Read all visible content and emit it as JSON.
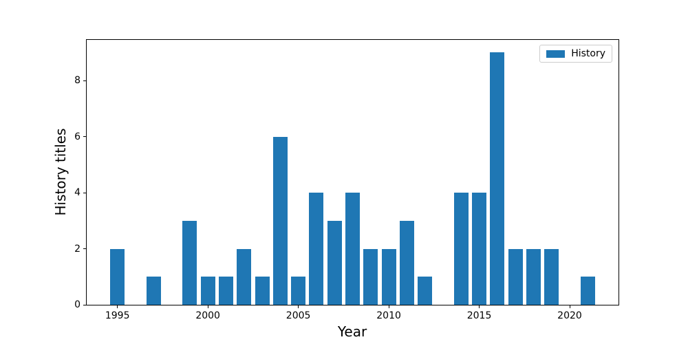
{
  "figure": {
    "background": "#ffffff",
    "frame_color": "#000000"
  },
  "chart_data": {
    "type": "bar",
    "title": "",
    "xlabel": "Year",
    "ylabel": "History titles",
    "legend": {
      "label": "History",
      "position": "upper right"
    },
    "bar_color": "#1f77b4",
    "bar_width": 0.8,
    "grid": false,
    "x": [
      1995,
      1996,
      1997,
      1998,
      1999,
      2000,
      2001,
      2002,
      2003,
      2004,
      2005,
      2006,
      2007,
      2008,
      2009,
      2010,
      2011,
      2012,
      2013,
      2014,
      2015,
      2016,
      2017,
      2018,
      2019,
      2020,
      2021
    ],
    "values": [
      2,
      0,
      1,
      0,
      3,
      1,
      1,
      2,
      1,
      6,
      1,
      4,
      3,
      4,
      2,
      2,
      3,
      1,
      0,
      4,
      4,
      9,
      2,
      2,
      2,
      0,
      1
    ],
    "xticks": [
      1995,
      2000,
      2005,
      2010,
      2015,
      2020
    ],
    "yticks": [
      0,
      2,
      4,
      6,
      8
    ],
    "xlim": [
      1993.3,
      2022.7
    ],
    "ylim": [
      0,
      9.45
    ]
  }
}
